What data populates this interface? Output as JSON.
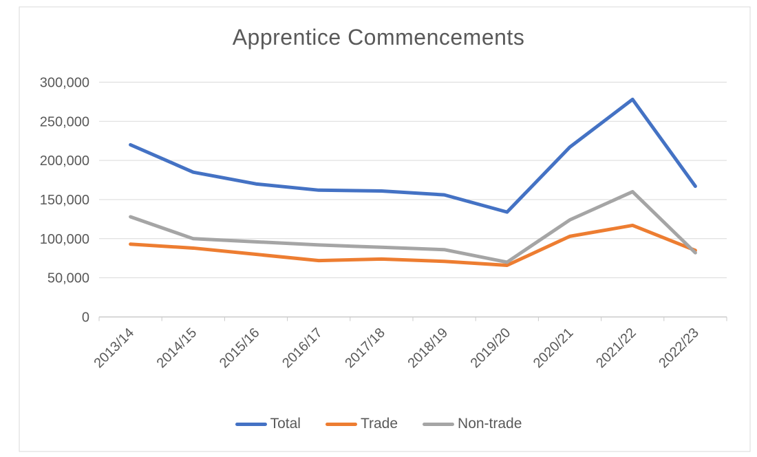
{
  "chart_data": {
    "type": "line",
    "title": "Apprentice Commencements",
    "categories": [
      "2013/14",
      "2014/15",
      "2015/16",
      "2016/17",
      "2017/18",
      "2018/19",
      "2019/20",
      "2020/21",
      "2021/22",
      "2022/23"
    ],
    "series": [
      {
        "name": "Total",
        "color": "#4472C4",
        "values": [
          220000,
          185000,
          170000,
          162000,
          161000,
          156000,
          134000,
          217000,
          278000,
          167000
        ]
      },
      {
        "name": "Trade",
        "color": "#ED7D31",
        "values": [
          93000,
          88000,
          80000,
          72000,
          74000,
          71000,
          66000,
          103000,
          117000,
          85000
        ]
      },
      {
        "name": "Non-trade",
        "color": "#A5A5A5",
        "values": [
          128000,
          100000,
          96000,
          92000,
          89000,
          86000,
          70000,
          124000,
          160000,
          82000
        ]
      }
    ],
    "y_axis": {
      "min": 0,
      "max": 300000,
      "step": 50000,
      "tick_labels": [
        "0",
        "50,000",
        "100,000",
        "150,000",
        "200,000",
        "250,000",
        "300,000"
      ]
    },
    "x_axis": {
      "tick_labels": [
        "2013/14",
        "2014/15",
        "2015/16",
        "2016/17",
        "2017/18",
        "2018/19",
        "2019/20",
        "2020/21",
        "2021/22",
        "2022/23"
      ],
      "label_rotation_deg": 45
    },
    "grid": true,
    "legend_position": "bottom"
  },
  "colors": {
    "title_text": "#595959",
    "axis_text": "#595959",
    "gridline": "#D9D9D9",
    "axis_line": "#C9C9C9",
    "frame_border": "#D9D9D9",
    "background": "#FFFFFF"
  }
}
